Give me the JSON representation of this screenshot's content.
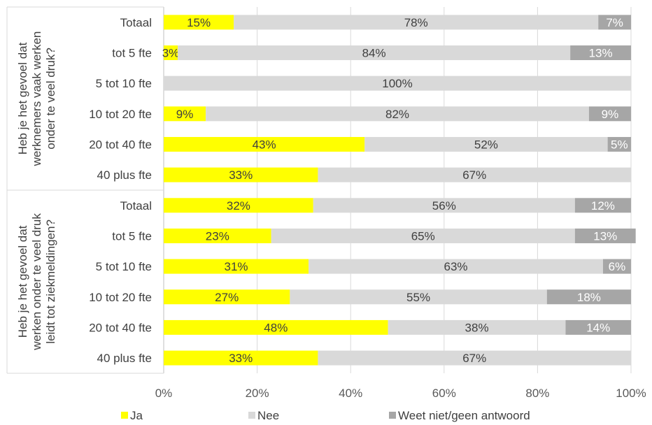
{
  "chart_data": {
    "type": "bar",
    "orientation": "horizontal",
    "stacked": true,
    "xlim": [
      0,
      100
    ],
    "x_ticks": [
      "0%",
      "20%",
      "40%",
      "60%",
      "80%",
      "100%"
    ],
    "grid": true,
    "legend_position": "bottom",
    "groups": [
      {
        "label": "Heb je het gevoel dat werknemers vaak werken onder te veel druk?",
        "label_lines": [
          "Heb je het gevoel dat",
          "werknemers vaak werken",
          "onder te veel druk?"
        ],
        "categories": [
          "Totaal",
          "tot 5 fte",
          "5 tot 10 fte",
          "10 tot 20 fte",
          "20 tot 40 fte",
          "40 plus fte"
        ],
        "series": [
          {
            "name": "Ja",
            "values": [
              15,
              3,
              0,
              9,
              43,
              33
            ]
          },
          {
            "name": "Nee",
            "values": [
              78,
              84,
              100,
              82,
              52,
              67
            ]
          },
          {
            "name": "Weet niet/geen antwoord",
            "values": [
              7,
              13,
              0,
              9,
              5,
              0
            ]
          }
        ]
      },
      {
        "label": "Heb je het gevoel dat werken onder te veel druk leidt tot ziekmeldingen?",
        "label_lines": [
          "Heb je het gevoel dat",
          "werken onder te veel druk",
          "leidt tot ziekmeldingen?"
        ],
        "categories": [
          "Totaal",
          "tot 5 fte",
          "5 tot 10 fte",
          "10 tot 20 fte",
          "20 tot 40 fte",
          "40 plus fte"
        ],
        "series": [
          {
            "name": "Ja",
            "values": [
              32,
              23,
              31,
              27,
              48,
              33
            ]
          },
          {
            "name": "Nee",
            "values": [
              56,
              65,
              63,
              55,
              38,
              67
            ]
          },
          {
            "name": "Weet niet/geen antwoord",
            "values": [
              12,
              13,
              6,
              18,
              14,
              0
            ]
          }
        ]
      }
    ],
    "legend": [
      "Ja",
      "Nee",
      "Weet niet/geen antwoord"
    ],
    "colors": {
      "Ja": "#ffff00",
      "Nee": "#d9d9d9",
      "Weet niet/geen antwoord": "#a6a6a6"
    },
    "label_colors": {
      "Ja": "#404040",
      "Nee": "#404040",
      "Weet niet/geen antwoord": "#ffffff"
    }
  }
}
